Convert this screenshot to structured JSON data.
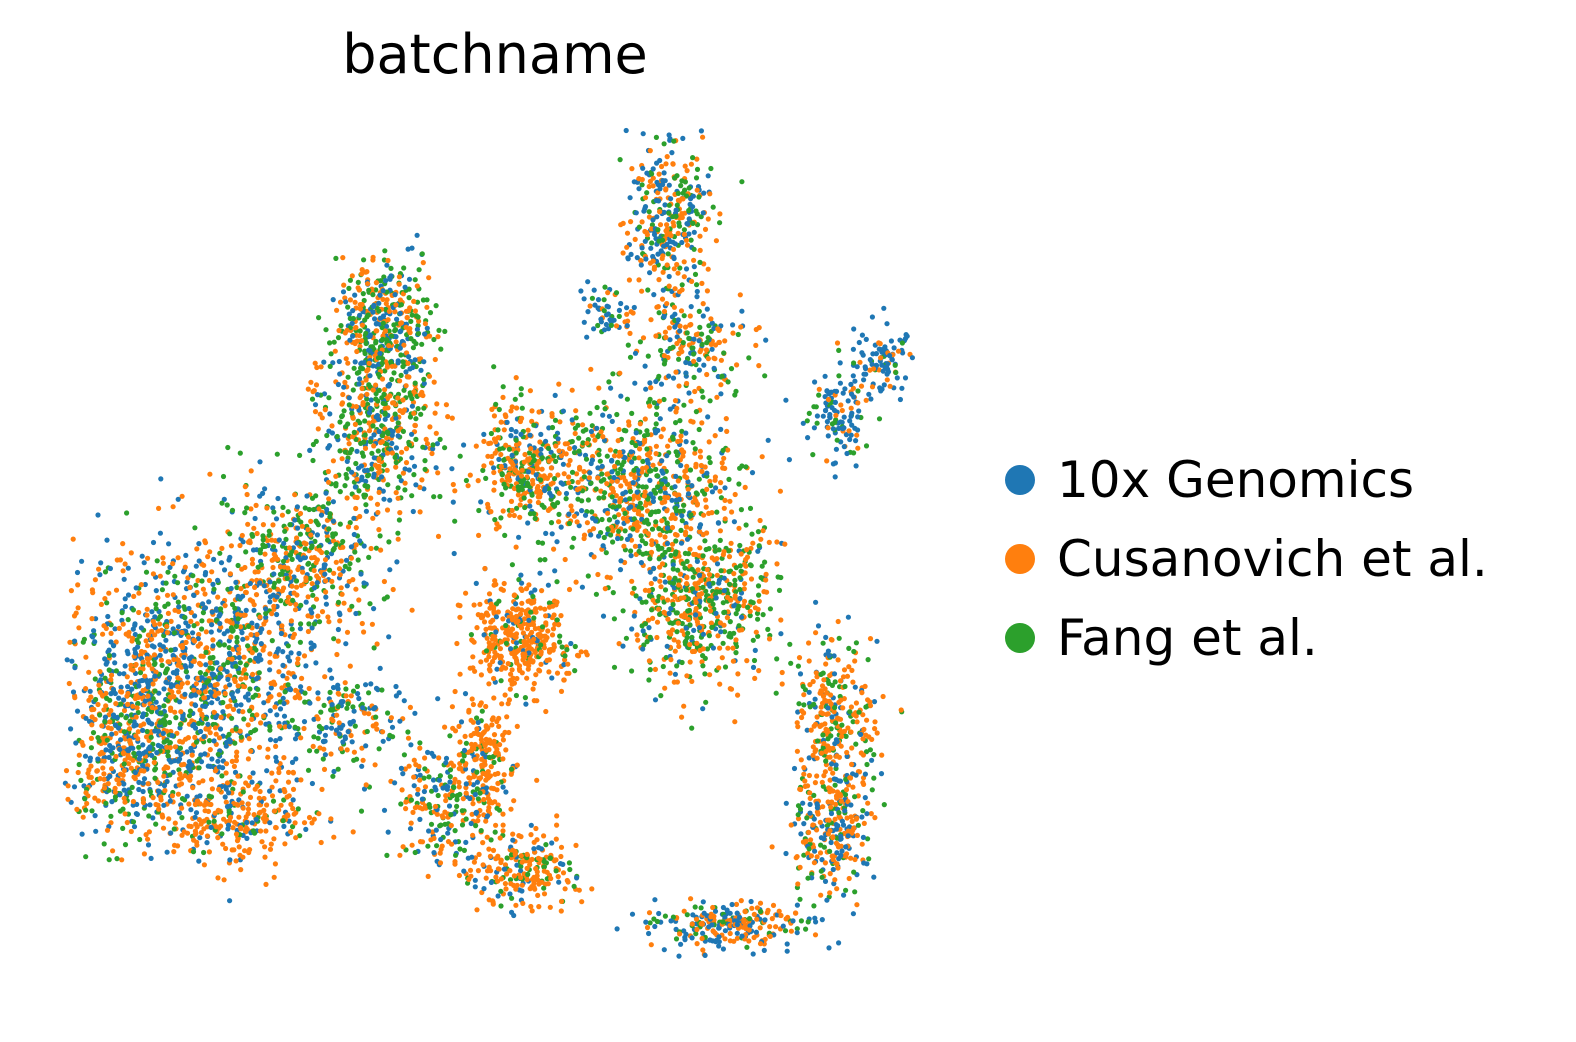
{
  "chart_data": {
    "type": "scatter",
    "title": "batchname",
    "xlabel": "",
    "ylabel": "",
    "axes_visible": false,
    "grid": false,
    "legend_placement": "right",
    "xlim": [
      0,
      10
    ],
    "ylim": [
      0,
      10
    ],
    "series": [
      {
        "name": "10x Genomics",
        "color": "#1f77b4"
      },
      {
        "name": "Cusanovich et al.",
        "color": "#ff7f0e"
      },
      {
        "name": "Fang et al.",
        "color": "#2ca02c"
      }
    ]
  }
}
